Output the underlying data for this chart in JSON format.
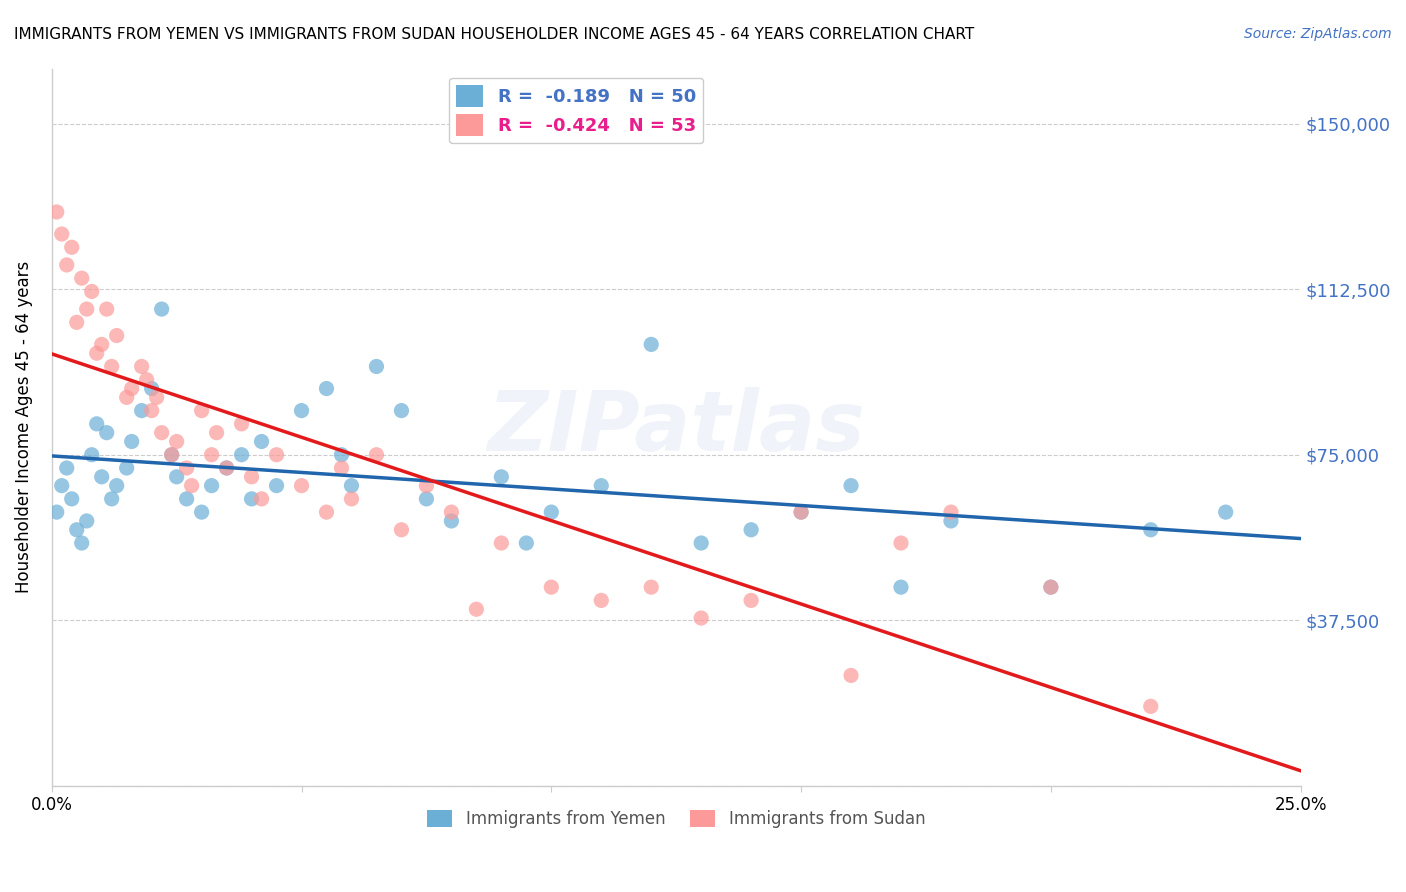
{
  "title": "IMMIGRANTS FROM YEMEN VS IMMIGRANTS FROM SUDAN HOUSEHOLDER INCOME AGES 45 - 64 YEARS CORRELATION CHART",
  "source": "Source: ZipAtlas.com",
  "xlabel": "",
  "ylabel": "Householder Income Ages 45 - 64 years",
  "xlim": [
    0.0,
    0.25
  ],
  "ylim": [
    0,
    162500
  ],
  "yticks": [
    0,
    37500,
    75000,
    112500,
    150000
  ],
  "ytick_labels": [
    "",
    "$37,500",
    "$75,000",
    "$112,500",
    "$150,000"
  ],
  "xticks": [
    0.0,
    0.05,
    0.1,
    0.15,
    0.2,
    0.25
  ],
  "xtick_labels": [
    "0.0%",
    "",
    "",
    "",
    "",
    "25.0%"
  ],
  "color_yemen": "#6baed6",
  "color_sudan": "#fb9a99",
  "color_line_yemen": "#2166ac",
  "color_line_sudan": "#e31a1c",
  "color_line_sudan_dashed": "#d4b8b8",
  "R_yemen": -0.189,
  "N_yemen": 50,
  "R_sudan": -0.424,
  "N_sudan": 53,
  "watermark": "ZIPatlas",
  "background_color": "#ffffff",
  "grid_color": "#cccccc",
  "yemen_x": [
    0.001,
    0.002,
    0.003,
    0.004,
    0.005,
    0.006,
    0.007,
    0.008,
    0.009,
    0.01,
    0.011,
    0.012,
    0.013,
    0.015,
    0.016,
    0.018,
    0.02,
    0.022,
    0.024,
    0.025,
    0.027,
    0.03,
    0.032,
    0.035,
    0.038,
    0.04,
    0.042,
    0.045,
    0.05,
    0.055,
    0.058,
    0.06,
    0.065,
    0.07,
    0.075,
    0.08,
    0.09,
    0.095,
    0.1,
    0.11,
    0.12,
    0.13,
    0.14,
    0.15,
    0.16,
    0.17,
    0.18,
    0.2,
    0.22,
    0.235
  ],
  "yemen_y": [
    62000,
    68000,
    72000,
    65000,
    58000,
    55000,
    60000,
    75000,
    82000,
    70000,
    80000,
    65000,
    68000,
    72000,
    78000,
    85000,
    90000,
    108000,
    75000,
    70000,
    65000,
    62000,
    68000,
    72000,
    75000,
    65000,
    78000,
    68000,
    85000,
    90000,
    75000,
    68000,
    95000,
    85000,
    65000,
    60000,
    70000,
    55000,
    62000,
    68000,
    100000,
    55000,
    58000,
    62000,
    68000,
    45000,
    60000,
    45000,
    58000,
    62000
  ],
  "sudan_x": [
    0.001,
    0.002,
    0.003,
    0.004,
    0.005,
    0.006,
    0.007,
    0.008,
    0.009,
    0.01,
    0.011,
    0.012,
    0.013,
    0.015,
    0.016,
    0.018,
    0.019,
    0.02,
    0.021,
    0.022,
    0.024,
    0.025,
    0.027,
    0.028,
    0.03,
    0.032,
    0.033,
    0.035,
    0.038,
    0.04,
    0.042,
    0.045,
    0.05,
    0.055,
    0.058,
    0.06,
    0.065,
    0.07,
    0.075,
    0.08,
    0.085,
    0.09,
    0.1,
    0.11,
    0.12,
    0.13,
    0.14,
    0.15,
    0.16,
    0.17,
    0.18,
    0.2,
    0.22
  ],
  "sudan_y": [
    130000,
    125000,
    118000,
    122000,
    105000,
    115000,
    108000,
    112000,
    98000,
    100000,
    108000,
    95000,
    102000,
    88000,
    90000,
    95000,
    92000,
    85000,
    88000,
    80000,
    75000,
    78000,
    72000,
    68000,
    85000,
    75000,
    80000,
    72000,
    82000,
    70000,
    65000,
    75000,
    68000,
    62000,
    72000,
    65000,
    75000,
    58000,
    68000,
    62000,
    40000,
    55000,
    45000,
    42000,
    45000,
    38000,
    42000,
    62000,
    25000,
    55000,
    62000,
    45000,
    18000
  ]
}
